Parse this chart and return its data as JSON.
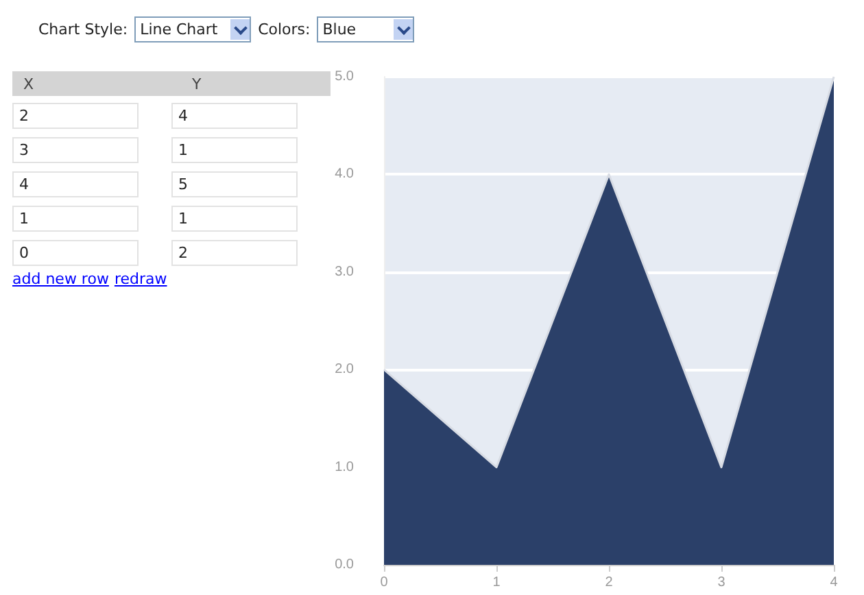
{
  "chart_data": {
    "type": "area",
    "x": [
      0,
      1,
      2,
      3,
      4
    ],
    "series": [
      {
        "color": "#2b4069",
        "values": [
          2,
          1,
          4,
          1,
          5
        ]
      }
    ],
    "xlim": [
      0,
      4
    ],
    "xticks": [
      0,
      1,
      2,
      3,
      4
    ],
    "ylim": [
      0,
      5
    ],
    "yticks": [
      {
        "value": 0,
        "label": "0.0"
      },
      {
        "value": 1,
        "label": "1.0"
      },
      {
        "value": 2,
        "label": "2.0"
      },
      {
        "value": 3,
        "label": "3.0"
      },
      {
        "value": 4,
        "label": "4.0"
      },
      {
        "value": 5,
        "label": "5.0"
      }
    ],
    "grid": "y",
    "annotations": [
      "Chart Style:",
      "Line Chart",
      "Colors:",
      "Blue",
      "add new row",
      "redraw",
      "X",
      "Y",
      "2",
      "4",
      "3",
      "1",
      "4",
      "5",
      "1",
      "1",
      "0",
      "2"
    ]
  }
}
